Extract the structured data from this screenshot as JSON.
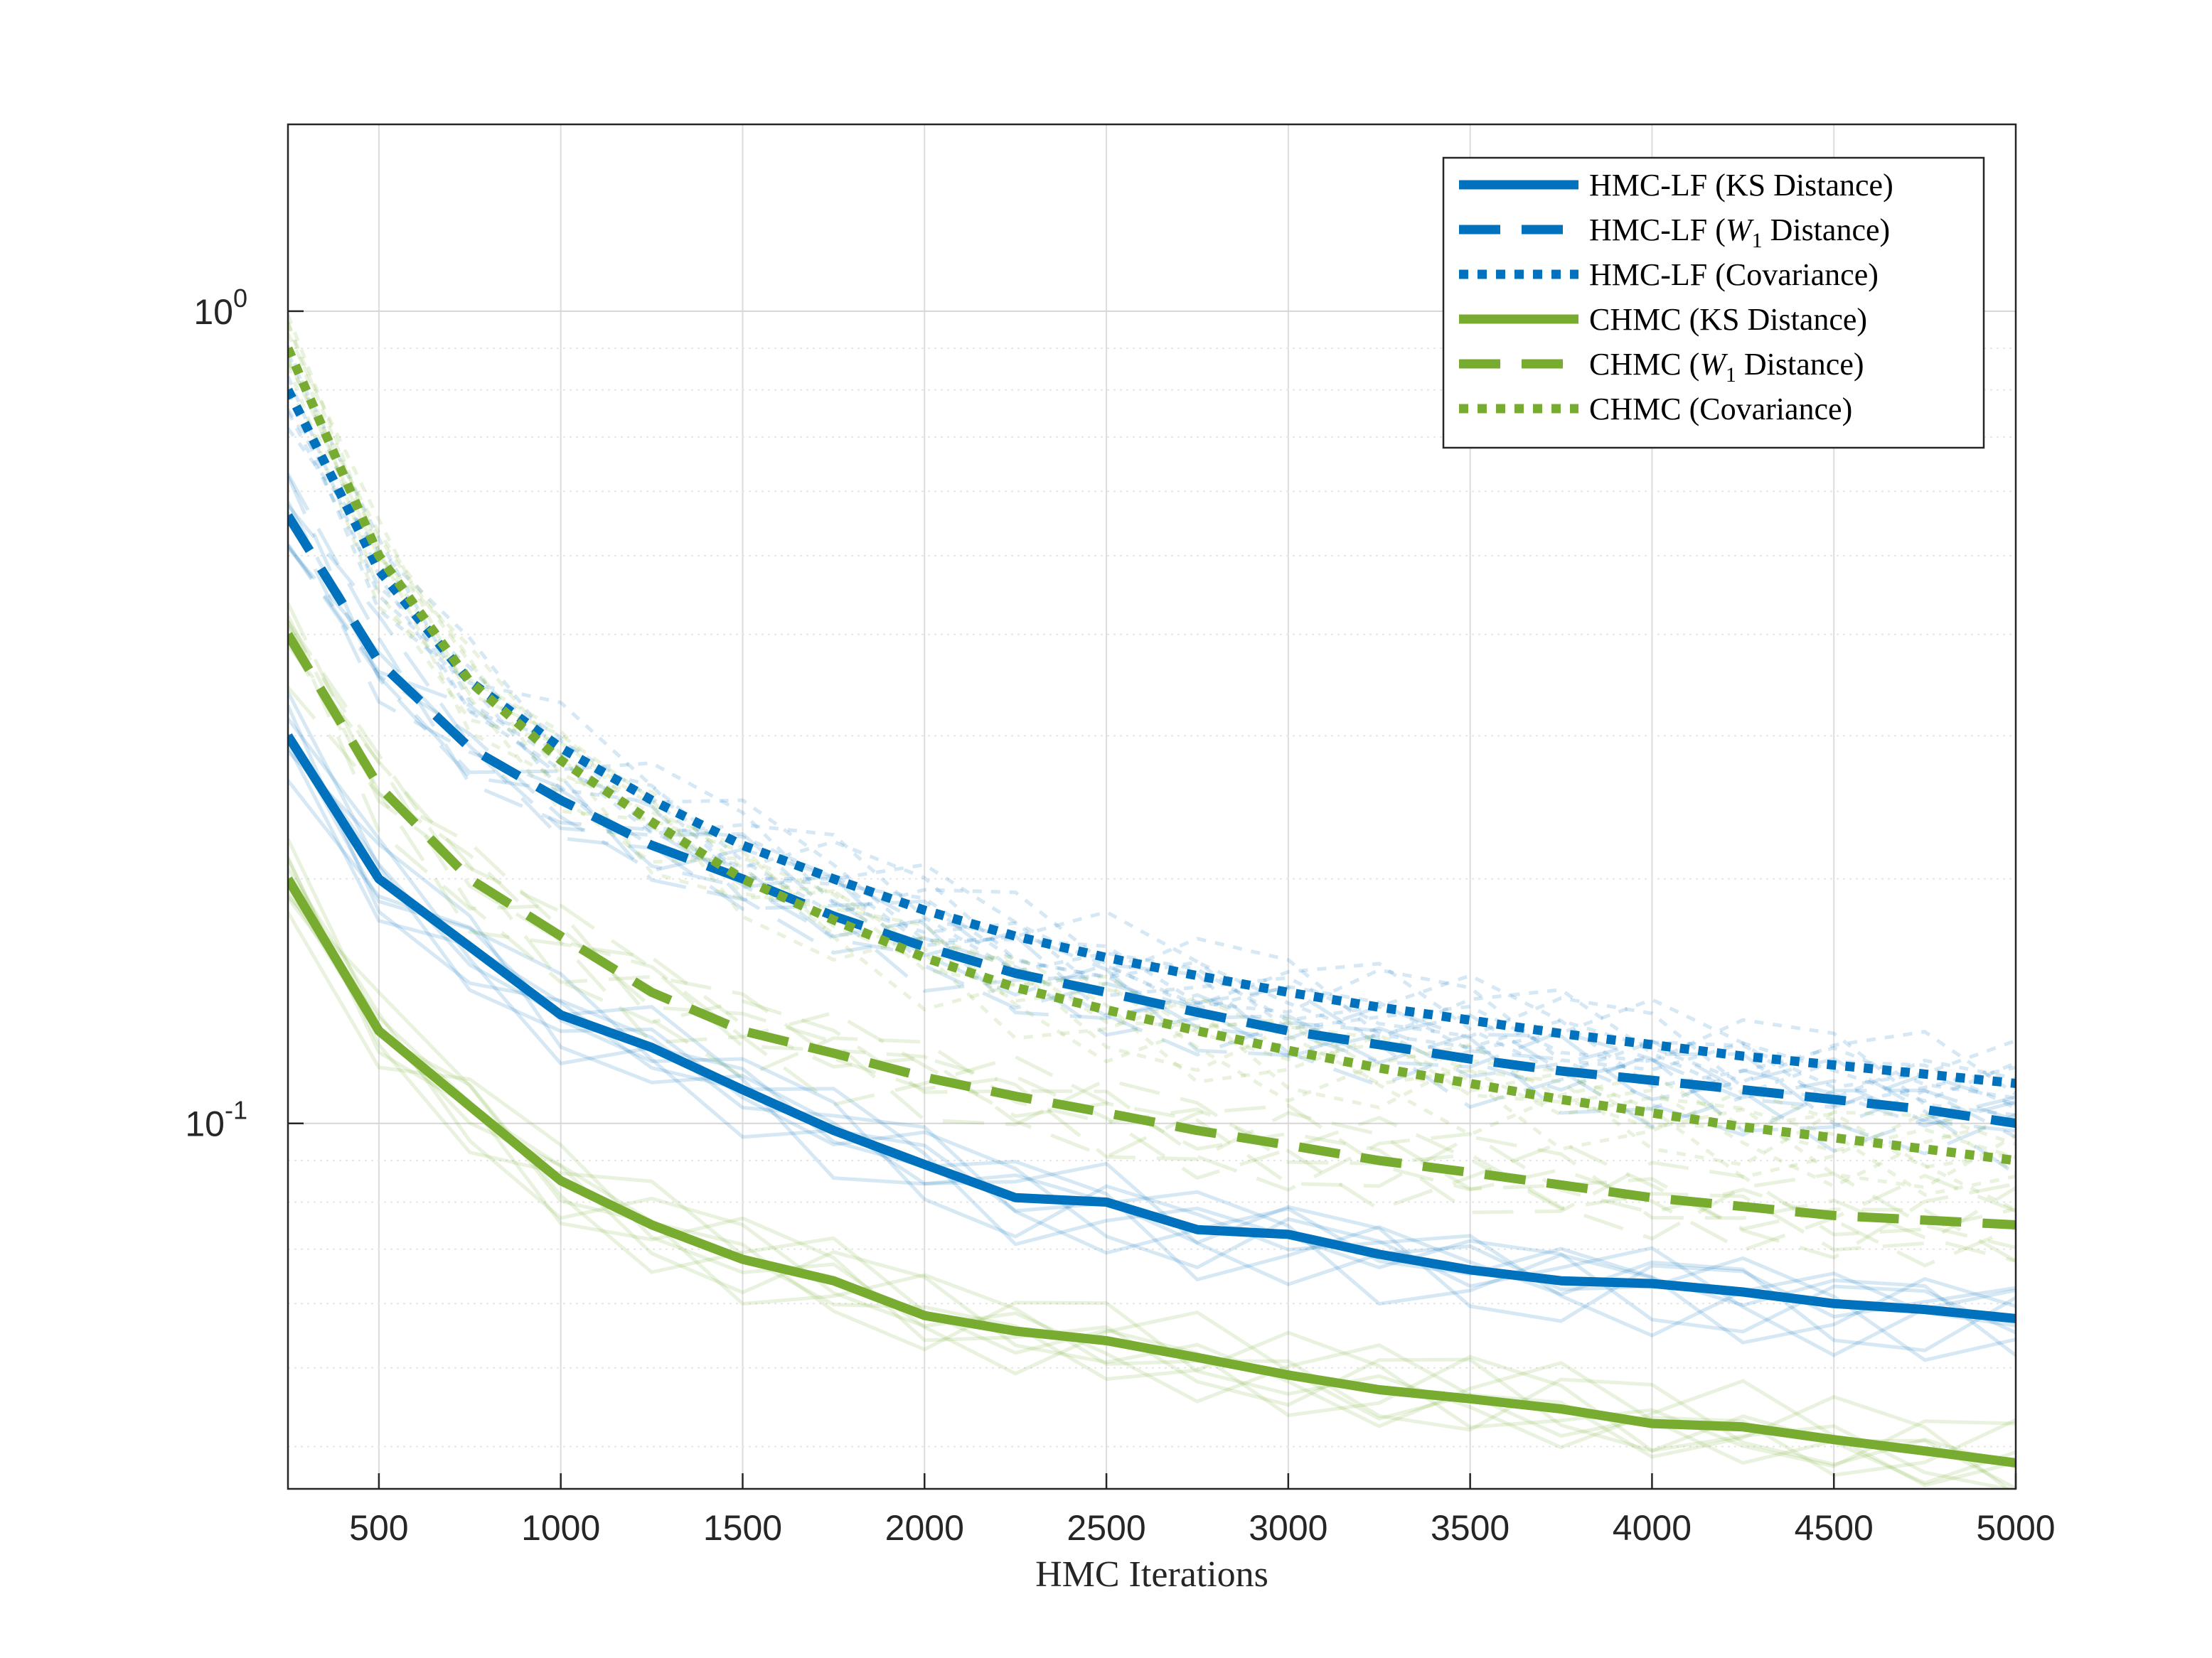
{
  "chart_data": {
    "type": "line",
    "title": "",
    "xlabel": "HMC Iterations",
    "ylabel": "",
    "xlim": [
      250,
      5000
    ],
    "ylim_log10": [
      -1.45,
      0.23
    ],
    "yscale": "log",
    "grid": true,
    "legend_position": "top-right",
    "x_ticks": [
      500,
      1000,
      1500,
      2000,
      2500,
      3000,
      3500,
      4000,
      4500,
      5000
    ],
    "x_tick_labels": [
      "500",
      "1000",
      "1500",
      "2000",
      "2500",
      "3000",
      "3500",
      "4000",
      "4500",
      "5000"
    ],
    "y_ticks": [
      {
        "base": "10",
        "exp": "0",
        "value": 1
      },
      {
        "base": "10",
        "exp": "-1",
        "value": 0.1
      }
    ],
    "colors": {
      "blue": "#0072BD",
      "green": "#77AC30"
    },
    "x": [
      250,
      500,
      750,
      1000,
      1250,
      1500,
      1750,
      2000,
      2250,
      2500,
      2750,
      3000,
      3250,
      3500,
      3750,
      4000,
      4250,
      4500,
      4750,
      5000
    ],
    "series": [
      {
        "name": "HMC-LF (KS Distance)",
        "name_plain": "HMC-LF (KS Distance)",
        "color": "#0072BD",
        "dash": "solid",
        "values": [
          0.3,
          0.2,
          0.165,
          0.136,
          0.124,
          0.11,
          0.098,
          0.089,
          0.081,
          0.08,
          0.074,
          0.073,
          0.069,
          0.066,
          0.064,
          0.0635,
          0.062,
          0.06,
          0.059,
          0.0575
        ]
      },
      {
        "name": "HMC-LF (W_1 Distance)",
        "name_pre": "HMC-LF (",
        "name_var": "W",
        "name_sub": "1",
        "name_post": " Distance)",
        "color": "#0072BD",
        "dash": "dashed",
        "values": [
          0.56,
          0.37,
          0.29,
          0.25,
          0.22,
          0.2,
          0.18,
          0.165,
          0.153,
          0.145,
          0.137,
          0.13,
          0.125,
          0.12,
          0.116,
          0.113,
          0.11,
          0.107,
          0.104,
          0.1
        ]
      },
      {
        "name": "HMC-LF (Covariance)",
        "name_plain": "HMC-LF (Covariance)",
        "color": "#0072BD",
        "dash": "dotted",
        "values": [
          0.8,
          0.48,
          0.35,
          0.29,
          0.25,
          0.22,
          0.2,
          0.183,
          0.17,
          0.16,
          0.152,
          0.145,
          0.139,
          0.134,
          0.129,
          0.125,
          0.121,
          0.118,
          0.115,
          0.112
        ]
      },
      {
        "name": "CHMC (KS Distance)",
        "name_plain": "CHMC (KS Distance)",
        "color": "#77AC30",
        "dash": "solid",
        "values": [
          0.2,
          0.13,
          0.105,
          0.085,
          0.075,
          0.068,
          0.064,
          0.058,
          0.0555,
          0.054,
          0.0515,
          0.049,
          0.047,
          0.0458,
          0.0445,
          0.0427,
          0.0423,
          0.0408,
          0.0395,
          0.0382
        ]
      },
      {
        "name": "CHMC (W_1 Distance)",
        "name_pre": "CHMC (",
        "name_var": "W",
        "name_sub": "1",
        "name_post": " Distance)",
        "color": "#77AC30",
        "dash": "dashed",
        "values": [
          0.4,
          0.26,
          0.2,
          0.17,
          0.145,
          0.13,
          0.122,
          0.114,
          0.108,
          0.103,
          0.098,
          0.094,
          0.09,
          0.087,
          0.084,
          0.081,
          0.079,
          0.077,
          0.076,
          0.075
        ]
      },
      {
        "name": "CHMC (Covariance)",
        "name_plain": "CHMC (Covariance)",
        "color": "#77AC30",
        "dash": "dotted",
        "values": [
          0.9,
          0.5,
          0.35,
          0.28,
          0.235,
          0.2,
          0.178,
          0.16,
          0.147,
          0.138,
          0.13,
          0.123,
          0.117,
          0.112,
          0.107,
          0.103,
          0.099,
          0.096,
          0.093,
          0.09
        ]
      }
    ]
  }
}
